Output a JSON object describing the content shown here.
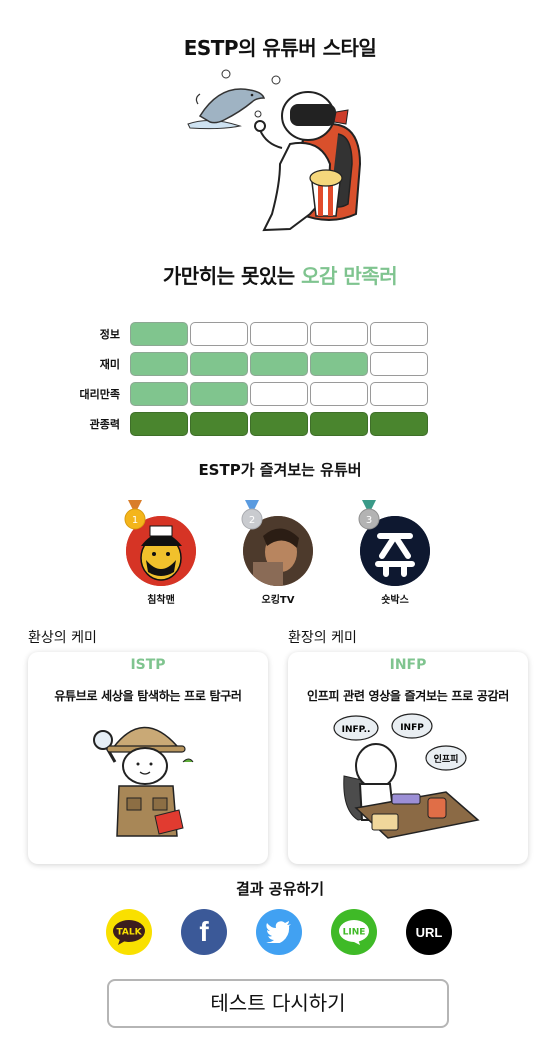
{
  "header": {
    "title": "ESTP의 유튜버 스타일"
  },
  "hero": {
    "image": "estp-illustration"
  },
  "tagline": {
    "prefix": "가만히는 못있는 ",
    "accent": "오감 만족러",
    "accent_color": "#7fc48f"
  },
  "stats": [
    {
      "label": "정보",
      "level": 1,
      "max": 5
    },
    {
      "label": "재미",
      "level": 4,
      "max": 5
    },
    {
      "label": "대리만족",
      "level": 2,
      "max": 5
    },
    {
      "label": "관종력",
      "level": 5,
      "max": 5
    }
  ],
  "favorites": {
    "title": "ESTP가 즐겨보는 유튜버",
    "items": [
      {
        "rank": "1",
        "name": "침착맨",
        "medal_color": "#f4b51b"
      },
      {
        "rank": "2",
        "name": "오킹TV",
        "medal_color": "#b9bcc0"
      },
      {
        "rank": "3",
        "name": "숏박스",
        "medal_color": "#a8a8a8"
      }
    ]
  },
  "chemistry": {
    "good": {
      "label": "환상의 케미",
      "type": "ISTP",
      "desc": "유튜브로 세상을 탐색하는 프로 탐구러"
    },
    "bad": {
      "label": "환장의 케미",
      "type": "INFP",
      "desc": "인프피 관련 영상을 즐겨보는 프로 공감러",
      "bubbles": [
        "INFP..",
        "INFP",
        "인프피"
      ]
    }
  },
  "share": {
    "title": "결과 공유하기",
    "buttons": [
      {
        "name": "kakao",
        "label": "TALK",
        "color": "#f9e000"
      },
      {
        "name": "facebook",
        "label": "f",
        "color": "#3b5998"
      },
      {
        "name": "twitter",
        "label": "",
        "color": "#41a1f2"
      },
      {
        "name": "line",
        "label": "LINE",
        "color": "#3fba27"
      },
      {
        "name": "url",
        "label": "URL",
        "color": "#000000"
      }
    ]
  },
  "retry": {
    "label": "테스트 다시하기"
  }
}
